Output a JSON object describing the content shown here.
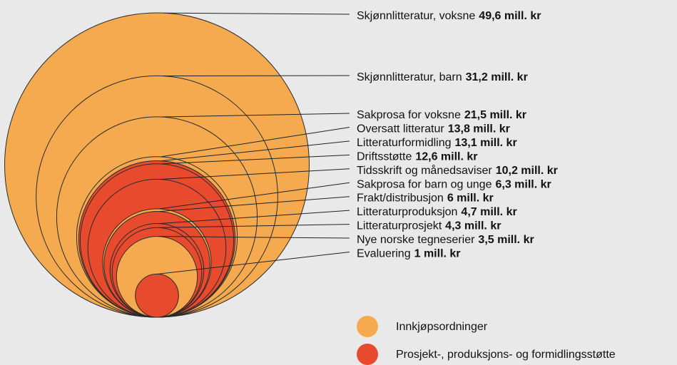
{
  "chart_data": {
    "type": "nested-circles",
    "categories": [
      "Skjønnlitteratur, voksne",
      "Skjønnlitteratur, barn",
      "Sakprosa for voksne",
      "Oversatt litteratur",
      "Litteraturformidling",
      "Driftsstøtte",
      "Tidsskrift og månedsaviser",
      "Sakprosa for barn og unge",
      "Frakt/distribusjon",
      "Litteraturproduksjon",
      "Litteraturprosjekt",
      "Nye norske tegneserier",
      "Evaluering"
    ],
    "values": [
      49.6,
      31.2,
      21.5,
      13.8,
      13.1,
      12.6,
      10.2,
      6.3,
      6,
      4.7,
      4.3,
      3.5,
      1
    ],
    "value_labels": [
      "49,6 mill. kr",
      "31,2 mill. kr",
      "21,5 mill. kr",
      "13,8 mill. kr",
      "13,1 mill. kr",
      "12,6 mill. kr",
      "10,2 mill. kr",
      "6,3 mill. kr",
      "6 mill. kr",
      "4,7 mill. kr",
      "4,3 mill. kr",
      "3,5 mill. kr",
      "1 mill. kr"
    ],
    "point_colors": [
      "#f5aa4f",
      "#f5aa4f",
      "#f5aa4f",
      "#f5aa4f",
      "#e84a2e",
      "#e84a2e",
      "#e84a2e",
      "#f5aa4f",
      "#e84a2e",
      "#e84a2e",
      "#e84a2e",
      "#f5aa4f",
      "#e84a2e"
    ],
    "series": [
      {
        "name": "Innkjøpsordninger",
        "color": "#f5aa4f"
      },
      {
        "name": "Prosjekt-, produksjons- og formidlingsstøtte",
        "color": "#e84a2e"
      }
    ]
  }
}
